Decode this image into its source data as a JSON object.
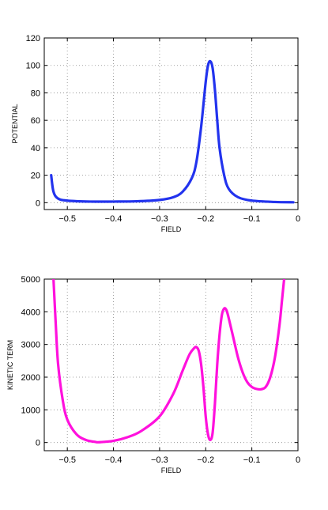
{
  "chart_data": [
    {
      "type": "line",
      "xlabel": "FIELD",
      "ylabel": "POTENTIAL",
      "xlim": [
        -0.55,
        0
      ],
      "ylim": [
        -5,
        120
      ],
      "xticks": [
        -0.5,
        -0.4,
        -0.3,
        -0.2,
        -0.1,
        0
      ],
      "xtick_labels": [
        "−0.5",
        "−0.4",
        "−0.3",
        "−0.2",
        "−0.1",
        "0"
      ],
      "yticks": [
        0,
        20,
        40,
        60,
        80,
        100,
        120
      ],
      "ytick_labels": [
        "0",
        "20",
        "40",
        "60",
        "80",
        "100",
        "120"
      ],
      "grid": true,
      "color": "#2233ee",
      "series": [
        {
          "x": [
            -0.535,
            -0.53,
            -0.52,
            -0.5,
            -0.45,
            -0.4,
            -0.35,
            -0.3,
            -0.27,
            -0.25,
            -0.23,
            -0.22,
            -0.21,
            -0.2,
            -0.195,
            -0.19,
            -0.185,
            -0.18,
            -0.175,
            -0.17,
            -0.16,
            -0.15,
            -0.13,
            -0.1,
            -0.05,
            -0.01
          ],
          "y": [
            20,
            8,
            3,
            1.5,
            0.8,
            0.8,
            1,
            2,
            4,
            8,
            18,
            30,
            55,
            88,
            100,
            103,
            98,
            82,
            60,
            40,
            20,
            10,
            4,
            1.5,
            0.5,
            0.3
          ]
        }
      ]
    },
    {
      "type": "line",
      "xlabel": "FIELD",
      "ylabel": "KINETIC TERM",
      "xlim": [
        -0.55,
        0
      ],
      "ylim": [
        -250,
        5000
      ],
      "xticks": [
        -0.5,
        -0.4,
        -0.3,
        -0.2,
        -0.1,
        0
      ],
      "xtick_labels": [
        "−0.5",
        "−0.4",
        "−0.3",
        "−0.2",
        "−0.1",
        "0"
      ],
      "yticks": [
        0,
        1000,
        2000,
        3000,
        4000,
        5000
      ],
      "ytick_labels": [
        "0",
        "1000",
        "2000",
        "3000",
        "4000",
        "5000"
      ],
      "grid": true,
      "color": "#ff11dd",
      "series": [
        {
          "x": [
            -0.53,
            -0.525,
            -0.52,
            -0.51,
            -0.5,
            -0.48,
            -0.46,
            -0.44,
            -0.43,
            -0.4,
            -0.37,
            -0.34,
            -0.3,
            -0.27,
            -0.25,
            -0.235,
            -0.225,
            -0.22,
            -0.215,
            -0.21,
            -0.205,
            -0.2,
            -0.195,
            -0.19,
            -0.185,
            -0.18,
            -0.175,
            -0.17,
            -0.165,
            -0.16,
            -0.155,
            -0.15,
            -0.14,
            -0.13,
            -0.12,
            -0.11,
            -0.1,
            -0.09,
            -0.08,
            -0.07,
            -0.06,
            -0.05,
            -0.04,
            -0.035,
            -0.03
          ],
          "y": [
            5000,
            3600,
            2400,
            1300,
            700,
            250,
            80,
            20,
            10,
            50,
            160,
            350,
            800,
            1500,
            2200,
            2700,
            2890,
            2920,
            2800,
            2400,
            1700,
            800,
            250,
            80,
            300,
            1200,
            2400,
            3300,
            3900,
            4100,
            4050,
            3800,
            3200,
            2600,
            2150,
            1850,
            1700,
            1640,
            1630,
            1700,
            2000,
            2600,
            3600,
            4300,
            5000
          ]
        }
      ]
    }
  ]
}
